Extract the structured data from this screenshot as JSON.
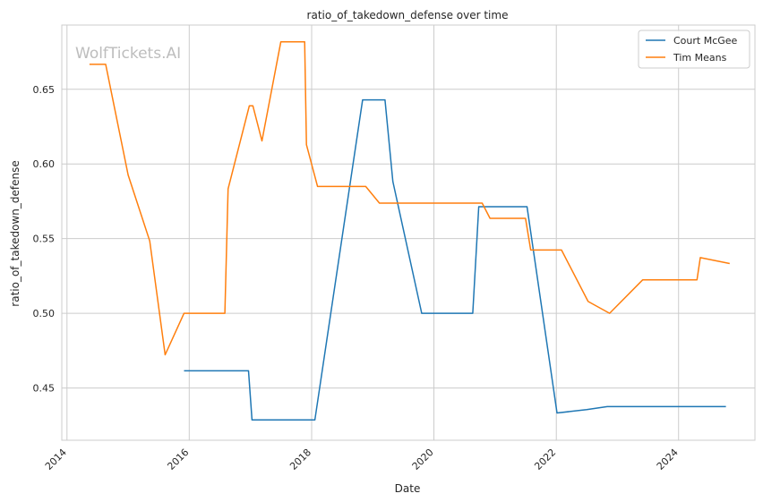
{
  "chart_data": {
    "type": "line",
    "title": "ratio_of_takedown_defense over time",
    "xlabel": "Date",
    "ylabel": "ratio_of_takedown_defense",
    "watermark": "WolfTickets.AI",
    "x_range": [
      "2013-12-01",
      "2025-04-01"
    ],
    "ylim": [
      0.415,
      0.693
    ],
    "x_ticks": [
      "2014",
      "2016",
      "2018",
      "2020",
      "2022",
      "2024"
    ],
    "y_ticks": [
      "0.45",
      "0.50",
      "0.55",
      "0.60",
      "0.65"
    ],
    "grid": true,
    "legend_position": "top-right",
    "colors": {
      "Court McGee": "#1f77b4",
      "Tim Means": "#ff7f0e",
      "grid": "#cccccc",
      "spine": "#cccccc"
    },
    "series": [
      {
        "name": "Court McGee",
        "color": "#1f77b4",
        "points": [
          [
            "2015-12-01",
            0.4615
          ],
          [
            "2016-12-20",
            0.4615
          ],
          [
            "2017-01-10",
            0.4286
          ],
          [
            "2018-01-20",
            0.4286
          ],
          [
            "2018-11-01",
            0.6429
          ],
          [
            "2019-03-15",
            0.6429
          ],
          [
            "2019-05-01",
            0.5882
          ],
          [
            "2019-10-20",
            0.5
          ],
          [
            "2020-08-20",
            0.5
          ],
          [
            "2020-09-25",
            0.5714
          ],
          [
            "2021-07-10",
            0.5714
          ],
          [
            "2022-01-05",
            0.4333
          ],
          [
            "2022-07-01",
            0.4355
          ],
          [
            "2022-11-01",
            0.4375
          ],
          [
            "2023-06-01",
            0.4375
          ],
          [
            "2024-01-01",
            0.4375
          ],
          [
            "2024-10-10",
            0.4375
          ]
        ]
      },
      {
        "name": "Tim Means",
        "color": "#ff7f0e",
        "points": [
          [
            "2014-05-15",
            0.6667
          ],
          [
            "2014-08-20",
            0.6667
          ],
          [
            "2015-01-01",
            0.5926
          ],
          [
            "2015-05-10",
            0.5484
          ],
          [
            "2015-08-10",
            0.4722
          ],
          [
            "2015-12-01",
            0.5
          ],
          [
            "2016-08-01",
            0.5
          ],
          [
            "2016-08-20",
            0.5833
          ],
          [
            "2016-12-25",
            0.6389
          ],
          [
            "2017-01-15",
            0.6389
          ],
          [
            "2017-03-10",
            0.6154
          ],
          [
            "2017-07-01",
            0.6818
          ],
          [
            "2017-11-20",
            0.6818
          ],
          [
            "2017-12-01",
            0.6129
          ],
          [
            "2018-02-05",
            0.5849
          ],
          [
            "2018-11-20",
            0.5849
          ],
          [
            "2019-02-10",
            0.5738
          ],
          [
            "2020-01-01",
            0.5738
          ],
          [
            "2020-10-15",
            0.5738
          ],
          [
            "2020-12-01",
            0.5636
          ],
          [
            "2021-07-01",
            0.5636
          ],
          [
            "2021-08-01",
            0.5424
          ],
          [
            "2022-02-01",
            0.5424
          ],
          [
            "2022-07-10",
            0.5079
          ],
          [
            "2022-11-15",
            0.5
          ],
          [
            "2023-06-01",
            0.5224
          ],
          [
            "2024-04-20",
            0.5224
          ],
          [
            "2024-05-10",
            0.5373
          ],
          [
            "2024-11-01",
            0.5333
          ]
        ]
      }
    ]
  }
}
